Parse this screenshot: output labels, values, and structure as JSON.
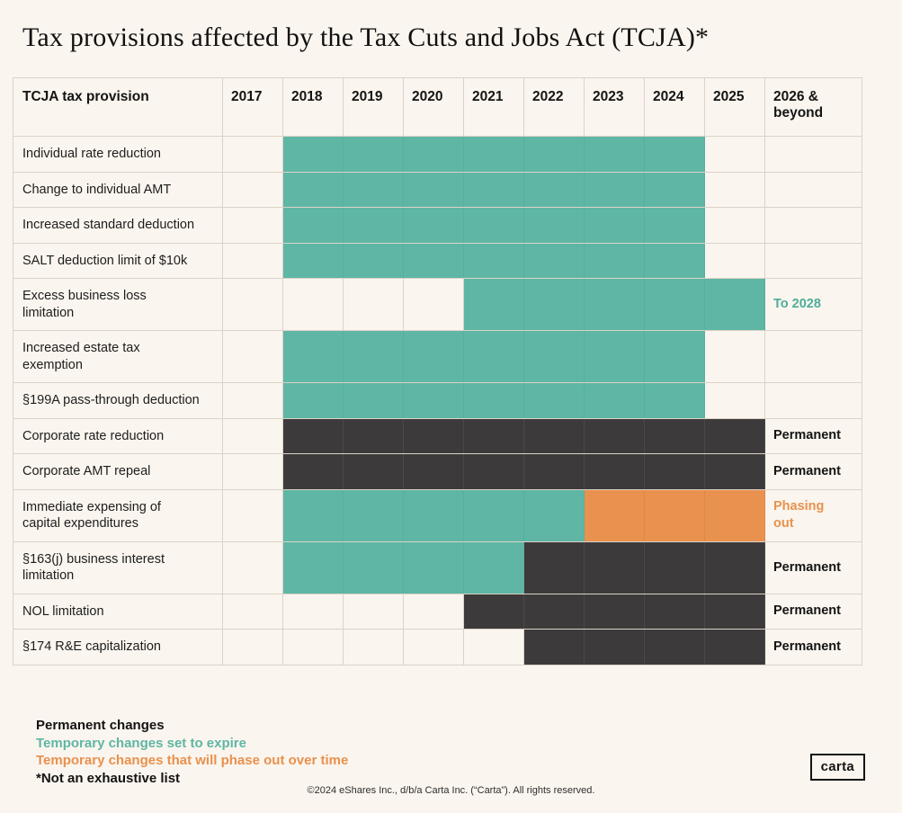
{
  "page": {
    "title": "Tax provisions affected by the Tax Cuts and Jobs Act (TCJA)*",
    "footer": "©2024 eShares Inc., d/b/a Carta Inc. (“Carta”). All rights reserved.",
    "logo": "carta"
  },
  "legend": {
    "items": [
      {
        "label": "Permanent changes",
        "color": "#131313"
      },
      {
        "label": "Temporary changes set to expire",
        "color": "#5FB6A4"
      },
      {
        "label": "Temporary changes that will phase out over time",
        "color": "#E9914E"
      },
      {
        "label": "*Not an exhaustive list",
        "color": "#131313"
      }
    ]
  },
  "chart_data": {
    "type": "heatmap",
    "title": "Tax provisions affected by the Tax Cuts and Jobs Act (TCJA)*",
    "row_header": "TCJA tax provision",
    "year_columns": [
      "2017",
      "2018",
      "2019",
      "2020",
      "2021",
      "2022",
      "2023",
      "2024",
      "2025"
    ],
    "final_column": "2026 & beyond",
    "status_colors": {
      "teal": "#5FB6A4",
      "dark": "#3D3A3B",
      "orange": "#E9914E"
    },
    "note_colors": {
      "teal": "#4EAD9A",
      "dark": "#141414",
      "orange": "#E9914E"
    },
    "status_meanings": {
      "dark": "Permanent changes",
      "teal": "Temporary changes set to expire",
      "orange": "Temporary changes that will phase out over time"
    },
    "rows": [
      {
        "label": "Individual rate reduction",
        "statuses": [
          "",
          "teal",
          "teal",
          "teal",
          "teal",
          "teal",
          "teal",
          "teal",
          ""
        ],
        "note": "",
        "note_color": ""
      },
      {
        "label": "Change to individual AMT",
        "statuses": [
          "",
          "teal",
          "teal",
          "teal",
          "teal",
          "teal",
          "teal",
          "teal",
          ""
        ],
        "note": "",
        "note_color": ""
      },
      {
        "label": "Increased standard deduction",
        "statuses": [
          "",
          "teal",
          "teal",
          "teal",
          "teal",
          "teal",
          "teal",
          "teal",
          ""
        ],
        "note": "",
        "note_color": ""
      },
      {
        "label": "SALT deduction limit of $10k",
        "statuses": [
          "",
          "teal",
          "teal",
          "teal",
          "teal",
          "teal",
          "teal",
          "teal",
          ""
        ],
        "note": "",
        "note_color": ""
      },
      {
        "label": "Excess business loss\nlimitation",
        "statuses": [
          "",
          "",
          "",
          "",
          "teal",
          "teal",
          "teal",
          "teal",
          "teal"
        ],
        "note": "To 2028",
        "note_color": "teal"
      },
      {
        "label": "Increased estate tax\nexemption",
        "statuses": [
          "",
          "teal",
          "teal",
          "teal",
          "teal",
          "teal",
          "teal",
          "teal",
          ""
        ],
        "note": "",
        "note_color": ""
      },
      {
        "label": "§199A pass-through deduction",
        "statuses": [
          "",
          "teal",
          "teal",
          "teal",
          "teal",
          "teal",
          "teal",
          "teal",
          ""
        ],
        "note": "",
        "note_color": ""
      },
      {
        "label": "Corporate rate reduction",
        "statuses": [
          "",
          "dark",
          "dark",
          "dark",
          "dark",
          "dark",
          "dark",
          "dark",
          "dark"
        ],
        "note": "Permanent",
        "note_color": "dark"
      },
      {
        "label": "Corporate AMT repeal",
        "statuses": [
          "",
          "dark",
          "dark",
          "dark",
          "dark",
          "dark",
          "dark",
          "dark",
          "dark"
        ],
        "note": "Permanent",
        "note_color": "dark"
      },
      {
        "label": "Immediate expensing of\ncapital expenditures",
        "statuses": [
          "",
          "teal",
          "teal",
          "teal",
          "teal",
          "teal",
          "orange",
          "orange",
          "orange"
        ],
        "note": "Phasing\nout",
        "note_color": "orange"
      },
      {
        "label": "§163(j) business interest\nlimitation",
        "statuses": [
          "",
          "teal",
          "teal",
          "teal",
          "teal",
          "dark",
          "dark",
          "dark",
          "dark"
        ],
        "note": "Permanent",
        "note_color": "dark"
      },
      {
        "label": "NOL limitation",
        "statuses": [
          "",
          "",
          "",
          "",
          "dark",
          "dark",
          "dark",
          "dark",
          "dark"
        ],
        "note": "Permanent",
        "note_color": "dark"
      },
      {
        "label": "§174 R&E capitalization",
        "statuses": [
          "",
          "",
          "",
          "",
          "",
          "dark",
          "dark",
          "dark",
          "dark"
        ],
        "note": "Permanent",
        "note_color": "dark"
      }
    ]
  }
}
